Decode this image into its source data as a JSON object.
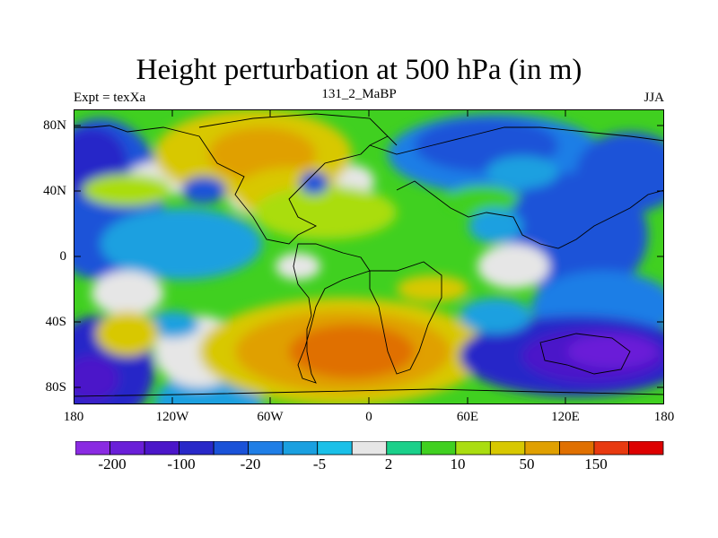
{
  "title": "Height perturbation at 500 hPa (in m)",
  "subtitle_left": "Expt = texXa",
  "subtitle_center": "131_2_MaBP",
  "subtitle_right": "JJA",
  "lat_labels": [
    "80N",
    "40N",
    "0",
    "40S",
    "80S"
  ],
  "lon_labels": [
    "180",
    "120W",
    "60W",
    "0",
    "60E",
    "120E",
    "180"
  ],
  "colorbar": {
    "colors": [
      "#8a2be2",
      "#6a1fd8",
      "#4b16c9",
      "#2828c8",
      "#1a52d8",
      "#1f7ee6",
      "#1aa0e0",
      "#1ac0e8",
      "#e6e6e6",
      "#1ad08a",
      "#40d020",
      "#aadd10",
      "#d8c800",
      "#e0a000",
      "#e07000",
      "#e83a10",
      "#dd0000"
    ],
    "labels": [
      "-200",
      "-100",
      "-20",
      "-5",
      "2",
      "10",
      "50",
      "150"
    ]
  },
  "colors": {
    "frame": "#000000",
    "background": "#ffffff"
  }
}
